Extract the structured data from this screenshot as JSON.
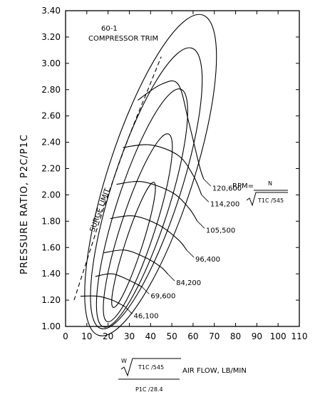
{
  "chart_data": {
    "type": "line",
    "title": "60-1",
    "subtitle": "COMPRESSOR TRIM",
    "ylabel": "PRESSURE RATIO, P2C/P1C",
    "xlabel": "AIR FLOW, LB/MIN",
    "xlabel_formula": {
      "sqrt_term": "T1C /545",
      "w": "W",
      "denominator": "P1C /28.4"
    },
    "xlim": [
      0,
      110
    ],
    "ylim": [
      1.0,
      3.4
    ],
    "x_ticks": [
      "0",
      "10",
      "20",
      "30",
      "40",
      "50",
      "60",
      "70",
      "80",
      "90",
      "100",
      "110"
    ],
    "y_ticks": [
      "1.00",
      "1.20",
      "1.40",
      "1.60",
      "1.80",
      "2.00",
      "2.20",
      "2.40",
      "2.60",
      "2.80",
      "3.00",
      "3.20",
      "3.40"
    ],
    "rpm_label": {
      "text": "RPM=",
      "numerator": "N",
      "denominator": "T1C /545"
    },
    "surge_label": "SURGE LIMIT",
    "surge_line": {
      "x": [
        4,
        10,
        20,
        30,
        40,
        45
      ],
      "y": [
        1.2,
        1.5,
        2.0,
        2.45,
        2.85,
        3.05
      ]
    },
    "speed_lines": [
      {
        "name": "46,100",
        "x": [
          7,
          15,
          22,
          28
        ],
        "y": [
          1.23,
          1.23,
          1.2,
          1.15
        ]
      },
      {
        "name": "69,600",
        "x": [
          14,
          22,
          30,
          36
        ],
        "y": [
          1.38,
          1.4,
          1.35,
          1.3
        ]
      },
      {
        "name": "84,200",
        "x": [
          18,
          28,
          38,
          45,
          48
        ],
        "y": [
          1.56,
          1.58,
          1.52,
          1.45,
          1.4
        ]
      },
      {
        "name": "96,400",
        "x": [
          21,
          32,
          44,
          53,
          57
        ],
        "y": [
          1.82,
          1.84,
          1.77,
          1.66,
          1.58
        ]
      },
      {
        "name": "105,500",
        "x": [
          24,
          36,
          50,
          58,
          62
        ],
        "y": [
          2.08,
          2.1,
          2.02,
          1.9,
          1.8
        ]
      },
      {
        "name": "114,200",
        "x": [
          27,
          40,
          53,
          60,
          64
        ],
        "y": [
          2.36,
          2.38,
          2.3,
          2.15,
          2.0
        ]
      },
      {
        "name": "120,600",
        "x": [
          34,
          45,
          53,
          58,
          63,
          65
        ],
        "y": [
          2.72,
          2.84,
          2.84,
          2.55,
          2.22,
          2.12
        ]
      }
    ],
    "efficiency_islands": [
      {
        "center": [
          32,
          1.62
        ],
        "rx": 4,
        "ry": 0.5
      },
      {
        "center": [
          34,
          1.75
        ],
        "rx": 8,
        "ry": 0.75
      },
      {
        "center": [
          36,
          1.9
        ],
        "rx": 12,
        "ry": 0.95
      },
      {
        "center": [
          38,
          2.05
        ],
        "rx": 16,
        "ry": 1.12
      },
      {
        "center": [
          40,
          2.15
        ],
        "rx": 20,
        "ry": 1.28
      }
    ],
    "grid": false,
    "legend": "none"
  }
}
